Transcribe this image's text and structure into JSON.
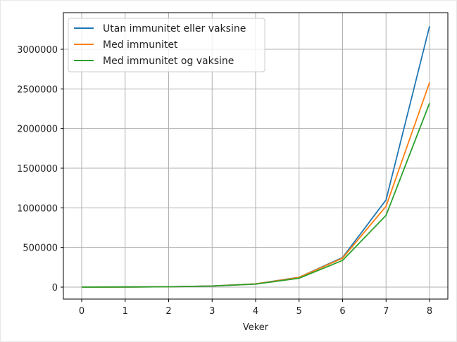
{
  "chart_data": {
    "type": "line",
    "title": "",
    "xlabel": "Veker",
    "ylabel": "",
    "x": [
      0,
      1,
      2,
      3,
      4,
      5,
      6,
      7,
      8
    ],
    "xlim": [
      -0.4,
      8.4
    ],
    "ylim": [
      -160000,
      3450000
    ],
    "xticks": [
      "0",
      "1",
      "2",
      "3",
      "4",
      "5",
      "6",
      "7",
      "8"
    ],
    "yticks": [
      "0",
      "500000",
      "1000000",
      "1500000",
      "2000000",
      "2500000",
      "3000000"
    ],
    "grid": true,
    "legend_position": "upper left",
    "series": [
      {
        "name": "Utan immunitet eller vaksine",
        "color": "#1f77b4",
        "values": [
          500,
          1500,
          4500,
          13700,
          41000,
          124000,
          373000,
          1100000,
          3290000
        ]
      },
      {
        "name": "Med immunitet",
        "color": "#ff7f0e",
        "values": [
          500,
          1500,
          4500,
          13600,
          40500,
          122000,
          365000,
          1020000,
          2580000
        ]
      },
      {
        "name": "Med immunitet og vaksine",
        "color": "#2ca02c",
        "values": [
          500,
          1500,
          4400,
          13000,
          38000,
          112000,
          337000,
          905000,
          2320000
        ]
      }
    ]
  }
}
